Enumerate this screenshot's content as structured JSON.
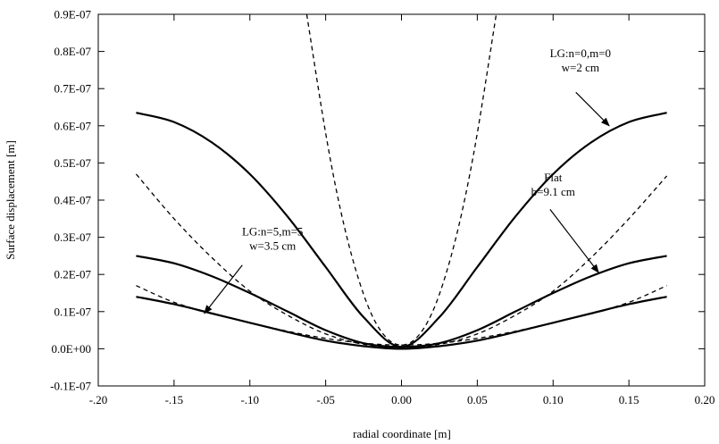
{
  "chart_data": {
    "type": "line",
    "title": "",
    "xlabel": "radial coordinate [m]",
    "ylabel": "Surface displacement [m]",
    "xlim": [
      -0.2,
      0.2
    ],
    "ylim": [
      -1e-08,
      9e-08
    ],
    "xticks": [
      -0.2,
      -0.15,
      -0.1,
      -0.05,
      0.0,
      0.05,
      0.1,
      0.15,
      0.2
    ],
    "xtick_labels": [
      "-.20",
      "-.15",
      "-.10",
      "-.05",
      "0.00",
      "0.05",
      "0.10",
      "0.15",
      "0.20"
    ],
    "yticks": [
      -1e-08,
      0,
      1e-08,
      2e-08,
      3e-08,
      4e-08,
      5e-08,
      6e-08,
      7e-08,
      8e-08,
      9e-08
    ],
    "ytick_labels": [
      "-0.1E-07",
      "0.0E+00",
      "0.1E-07",
      "0.2E-07",
      "0.3E-07",
      "0.4E-07",
      "0.5E-07",
      "0.6E-07",
      "0.7E-07",
      "0.8E-07",
      "0.9E-07"
    ],
    "grid": false,
    "legend": "none",
    "series": [
      {
        "style": "solid",
        "x": [
          -0.175,
          -0.15,
          -0.125,
          -0.1,
          -0.075,
          -0.05,
          -0.025,
          0.0,
          0.025,
          0.05,
          0.075,
          0.1,
          0.125,
          0.15,
          0.175
        ],
        "y": [
          6.35e-08,
          6.1e-08,
          5.55e-08,
          4.7e-08,
          3.55e-08,
          2.2e-08,
          8.5e-09,
          5e-10,
          8.5e-09,
          2.2e-08,
          3.55e-08,
          4.7e-08,
          5.55e-08,
          6.1e-08,
          6.35e-08
        ]
      },
      {
        "style": "solid",
        "x": [
          -0.175,
          -0.15,
          -0.125,
          -0.1,
          -0.075,
          -0.05,
          -0.025,
          0.0,
          0.025,
          0.05,
          0.075,
          0.1,
          0.125,
          0.15,
          0.175
        ],
        "y": [
          2.5e-08,
          2.3e-08,
          1.95e-08,
          1.5e-08,
          1e-08,
          5e-09,
          1.5e-09,
          5e-10,
          1.5e-09,
          5e-09,
          1e-08,
          1.5e-08,
          1.95e-08,
          2.3e-08,
          2.5e-08
        ]
      },
      {
        "style": "solid",
        "x": [
          -0.175,
          -0.15,
          -0.125,
          -0.1,
          -0.075,
          -0.05,
          -0.025,
          0.0,
          0.025,
          0.05,
          0.075,
          0.1,
          0.125,
          0.15,
          0.175
        ],
        "y": [
          1.4e-08,
          1.2e-08,
          9.5e-09,
          7e-09,
          4.5e-09,
          2.2e-09,
          7e-10,
          0.0,
          7e-10,
          2.2e-09,
          4.5e-09,
          7e-09,
          9.5e-09,
          1.2e-08,
          1.4e-08
        ]
      },
      {
        "style": "dashed",
        "x": [
          -0.0625,
          -0.05,
          -0.04,
          -0.03,
          -0.02,
          -0.01,
          0.0,
          0.01,
          0.02,
          0.03,
          0.04,
          0.05,
          0.0625
        ],
        "y": [
          9e-08,
          5.8e-08,
          3.7e-08,
          2.1e-08,
          9.5e-09,
          3e-09,
          1e-09,
          3e-09,
          9.5e-09,
          2.1e-08,
          3.7e-08,
          5.8e-08,
          9e-08
        ]
      },
      {
        "style": "dashed",
        "x": [
          -0.175,
          -0.15,
          -0.125,
          -0.1,
          -0.075,
          -0.05,
          -0.025,
          0.0,
          0.025,
          0.05,
          0.075,
          0.1,
          0.125,
          0.15,
          0.175
        ],
        "y": [
          4.7e-08,
          3.5e-08,
          2.45e-08,
          1.55e-08,
          9e-09,
          4e-09,
          1.2e-09,
          5e-10,
          1.2e-09,
          4e-09,
          9e-09,
          1.55e-08,
          2.45e-08,
          3.5e-08,
          4.65e-08
        ]
      },
      {
        "style": "dashed",
        "x": [
          -0.175,
          -0.15,
          -0.125,
          -0.1,
          -0.075,
          -0.05,
          -0.025,
          0.0,
          0.025,
          0.05,
          0.075,
          0.1,
          0.125,
          0.15,
          0.175
        ],
        "y": [
          1.7e-08,
          1.25e-08,
          9.5e-09,
          7e-09,
          4.7e-09,
          2.8e-09,
          1.5e-09,
          1e-09,
          1.5e-09,
          2.8e-09,
          4.7e-09,
          7e-09,
          9.5e-09,
          1.25e-08,
          1.7e-08
        ]
      }
    ],
    "annotations": [
      {
        "lines": [
          "LG:n=0,m=0",
          "w=2 cm"
        ],
        "text_at": [
          0.118,
          7.85e-08
        ],
        "arrow_from": [
          0.115,
          6.9e-08
        ],
        "arrow_to": [
          0.137,
          6e-08
        ]
      },
      {
        "lines": [
          "Flat",
          "b=9.1 cm"
        ],
        "text_at": [
          0.1,
          4.5e-08
        ],
        "arrow_from": [
          0.098,
          3.75e-08
        ],
        "arrow_to": [
          0.13,
          2.05e-08
        ]
      },
      {
        "lines": [
          "LG:n=5,m=5",
          "w=3.5 cm"
        ],
        "text_at": [
          -0.085,
          3.05e-08
        ],
        "arrow_from": [
          -0.105,
          2.25e-08
        ],
        "arrow_to": [
          -0.13,
          9.5e-09
        ]
      }
    ]
  }
}
